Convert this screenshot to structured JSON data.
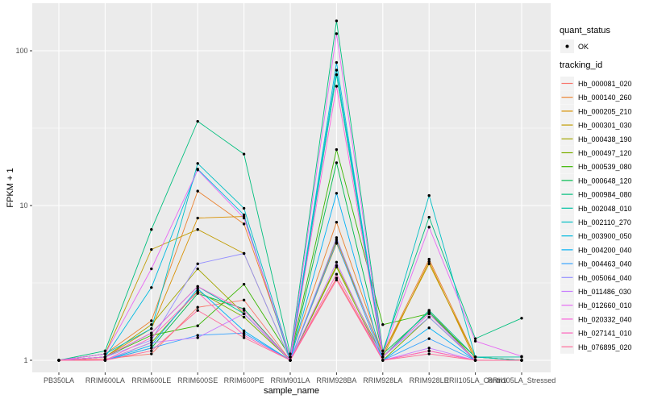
{
  "colors": {
    "figure_background": "#FFFFFF",
    "panel_background": "#EBEBEB",
    "gridline": "#FFFFFF",
    "tick_mark": "#333333",
    "tick_label": "#4D4D4D",
    "axis_title": "#000000",
    "point": "#000000",
    "legend_key_background": "#F2F2F2"
  },
  "legend": {
    "quant_status_title": "quant_status",
    "quant_status_items": [
      {
        "label": "OK",
        "symbol": "black-point"
      }
    ],
    "tracking_title": "tracking_id"
  },
  "chart_data": {
    "type": "line",
    "title": "",
    "xlabel": "sample_name",
    "ylabel": "FPKM + 1",
    "x_categories": [
      "PB350LA",
      "RRIM600LA",
      "RRIM600LE",
      "RRIM600SE",
      "RRIM600PE",
      "RRIM901LA",
      "RRIM928BA",
      "RRIM928LA",
      "RRIM928LE",
      "RRII105LA_Control",
      "RRII105LA_Stressed"
    ],
    "y_scale": "log10",
    "y_tick_labels": [
      "1",
      "10",
      "100"
    ],
    "y_tick_values": [
      1,
      10,
      100
    ],
    "y_minor_gridlines": [
      3.1623,
      31.623
    ],
    "ylim": [
      0.85,
      200
    ],
    "grid": true,
    "legend_position": "right",
    "points": "black markers at every observation (quant_status = OK)",
    "series": [
      {
        "name": "Hb_000081_020",
        "color": "#F8766D",
        "values": [
          1.0,
          1.02,
          1.1,
          2.2,
          2.45,
          1.0,
          3.4,
          1.0,
          1.15,
          1.0,
          1.0
        ]
      },
      {
        "name": "Hb_000140_260",
        "color": "#EA8331",
        "values": [
          1.0,
          1.1,
          1.8,
          12.4,
          7.6,
          1.05,
          7.8,
          1.1,
          4.5,
          1.05,
          1.0
        ]
      },
      {
        "name": "Hb_000205_210",
        "color": "#D89000",
        "values": [
          1.0,
          1.05,
          1.6,
          8.3,
          8.5,
          1.0,
          6.0,
          1.05,
          4.35,
          1.0,
          1.0
        ]
      },
      {
        "name": "Hb_000301_030",
        "color": "#C09B00",
        "values": [
          1.0,
          1.1,
          5.2,
          7.0,
          4.9,
          1.0,
          5.7,
          1.1,
          4.2,
          1.05,
          1.0
        ]
      },
      {
        "name": "Hb_000438_190",
        "color": "#A3A500",
        "values": [
          1.0,
          1.05,
          1.7,
          3.9,
          2.0,
          1.0,
          4.1,
          1.05,
          2.1,
          1.0,
          1.0
        ]
      },
      {
        "name": "Hb_000497_120",
        "color": "#7CAE00",
        "values": [
          1.0,
          1.0,
          1.3,
          2.8,
          1.9,
          1.0,
          4.0,
          1.0,
          1.9,
          1.0,
          1.0
        ]
      },
      {
        "name": "Hb_000539_080",
        "color": "#39B600",
        "values": [
          1.0,
          1.05,
          1.45,
          1.67,
          3.1,
          1.05,
          23.0,
          1.7,
          2.0,
          1.05,
          1.0
        ]
      },
      {
        "name": "Hb_000648_120",
        "color": "#00BB4E",
        "values": [
          1.0,
          1.0,
          1.2,
          2.7,
          2.15,
          1.0,
          18.9,
          1.1,
          2.05,
          1.0,
          1.0
        ]
      },
      {
        "name": "Hb_000984_080",
        "color": "#00BF7D",
        "values": [
          1.0,
          1.15,
          7.0,
          35.0,
          21.5,
          1.1,
          156.0,
          1.15,
          8.4,
          1.38,
          1.87
        ]
      },
      {
        "name": "Hb_002048_010",
        "color": "#00C1A3",
        "values": [
          1.0,
          1.05,
          1.5,
          3.0,
          2.0,
          1.0,
          70.0,
          1.05,
          2.1,
          1.05,
          1.05
        ]
      },
      {
        "name": "Hb_002110_270",
        "color": "#00BFC4",
        "values": [
          1.0,
          1.1,
          1.6,
          18.7,
          9.6,
          1.05,
          75.0,
          1.1,
          11.6,
          1.05,
          1.0
        ]
      },
      {
        "name": "Hb_003900_050",
        "color": "#00BAE0",
        "values": [
          1.0,
          1.05,
          2.95,
          17.2,
          8.7,
          1.0,
          84.0,
          1.05,
          2.0,
          1.0,
          1.0
        ]
      },
      {
        "name": "Hb_004200_040",
        "color": "#00B0F6",
        "values": [
          1.0,
          1.0,
          1.25,
          2.9,
          1.55,
          1.0,
          12.0,
          1.0,
          1.62,
          1.0,
          1.0
        ]
      },
      {
        "name": "Hb_004463_040",
        "color": "#35A2FF",
        "values": [
          1.0,
          1.0,
          1.2,
          1.45,
          1.5,
          1.0,
          5.8,
          1.0,
          1.38,
          1.0,
          1.0
        ]
      },
      {
        "name": "Hb_005064_040",
        "color": "#9590FF",
        "values": [
          1.0,
          1.05,
          1.35,
          4.2,
          4.9,
          1.0,
          6.2,
          1.05,
          1.9,
          1.0,
          1.0
        ]
      },
      {
        "name": "Hb_011486_030",
        "color": "#C77CFF",
        "values": [
          1.0,
          1.0,
          1.3,
          1.4,
          2.0,
          1.0,
          4.3,
          1.0,
          1.2,
          1.0,
          1.0
        ]
      },
      {
        "name": "Hb_012660_010",
        "color": "#E76BF3",
        "values": [
          1.0,
          1.1,
          3.9,
          17.0,
          8.3,
          1.05,
          129.0,
          1.1,
          7.25,
          1.33,
          1.06
        ]
      },
      {
        "name": "Hb_020332_040",
        "color": "#FA62DB",
        "values": [
          1.0,
          1.05,
          1.5,
          3.0,
          2.1,
          1.0,
          59.0,
          1.05,
          2.0,
          1.0,
          1.0
        ]
      },
      {
        "name": "Hb_027141_010",
        "color": "#FF62BC",
        "values": [
          1.0,
          1.0,
          1.4,
          2.75,
          1.45,
          1.0,
          3.6,
          1.0,
          1.15,
          1.0,
          1.0
        ]
      },
      {
        "name": "Hb_076895_020",
        "color": "#FF6A98",
        "values": [
          1.0,
          1.0,
          1.15,
          2.1,
          1.4,
          1.0,
          3.3,
          1.0,
          1.1,
          1.0,
          1.0
        ]
      }
    ]
  }
}
